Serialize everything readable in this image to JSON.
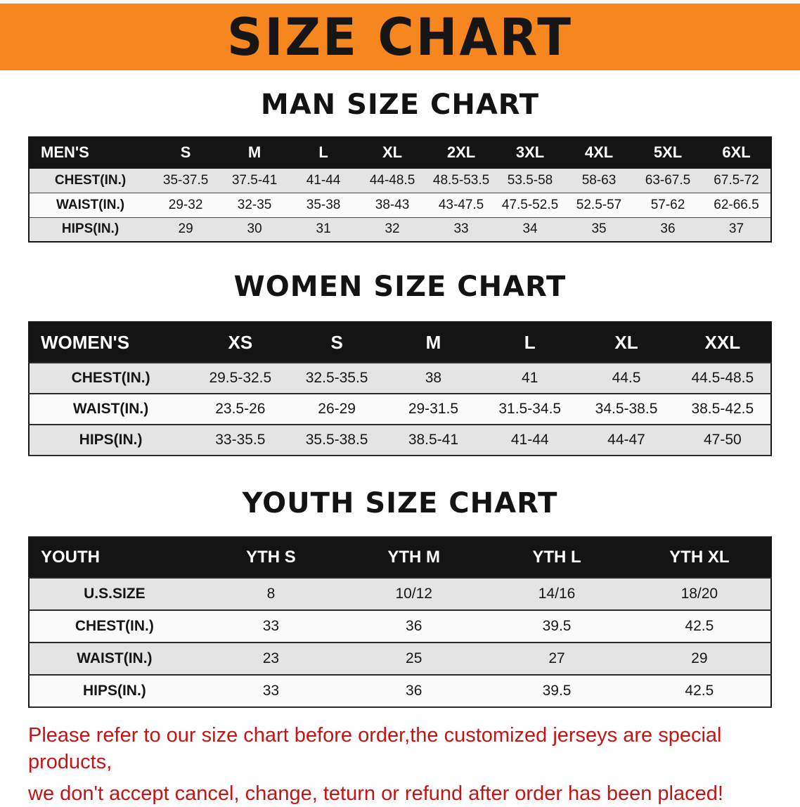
{
  "banner": {
    "title": "SIZE CHART",
    "bg_color": "#f6871e",
    "text_color": "#161616"
  },
  "men": {
    "heading": "MAN SIZE CHART",
    "table": {
      "label": "MEN'S",
      "columns": [
        "S",
        "M",
        "L",
        "XL",
        "2XL",
        "3XL",
        "4XL",
        "5XL",
        "6XL"
      ],
      "rows": [
        {
          "label": "CHEST(IN.)",
          "values": [
            "35-37.5",
            "37.5-41",
            "41-44",
            "44-48.5",
            "48.5-53.5",
            "53.5-58",
            "58-63",
            "63-67.5",
            "67.5-72"
          ]
        },
        {
          "label": "WAIST(IN.)",
          "values": [
            "29-32",
            "32-35",
            "35-38",
            "38-43",
            "43-47.5",
            "47.5-52.5",
            "52.5-57",
            "57-62",
            "62-66.5"
          ]
        },
        {
          "label": "HIPS(IN.)",
          "values": [
            "29",
            "30",
            "31",
            "32",
            "33",
            "34",
            "35",
            "36",
            "37"
          ]
        }
      ]
    }
  },
  "women": {
    "heading": "WOMEN SIZE CHART",
    "table": {
      "label": "WOMEN'S",
      "columns": [
        "XS",
        "S",
        "M",
        "L",
        "XL",
        "XXL"
      ],
      "rows": [
        {
          "label": "CHEST(IN.)",
          "values": [
            "29.5-32.5",
            "32.5-35.5",
            "38",
            "41",
            "44.5",
            "44.5-48.5"
          ]
        },
        {
          "label": "WAIST(IN.)",
          "values": [
            "23.5-26",
            "26-29",
            "29-31.5",
            "31.5-34.5",
            "34.5-38.5",
            "38.5-42.5"
          ]
        },
        {
          "label": "HIPS(IN.)",
          "values": [
            "33-35.5",
            "35.5-38.5",
            "38.5-41",
            "41-44",
            "44-47",
            "47-50"
          ]
        }
      ]
    }
  },
  "youth": {
    "heading": "YOUTH SIZE CHART",
    "table": {
      "label": "YOUTH",
      "columns": [
        "YTH S",
        "YTH M",
        "YTH L",
        "YTH XL"
      ],
      "rows": [
        {
          "label": "U.S.SIZE",
          "values": [
            "8",
            "10/12",
            "14/16",
            "18/20"
          ]
        },
        {
          "label": "CHEST(IN.)",
          "values": [
            "33",
            "36",
            "39.5",
            "42.5"
          ]
        },
        {
          "label": "WAIST(IN.)",
          "values": [
            "23",
            "25",
            "27",
            "29"
          ]
        },
        {
          "label": "HIPS(IN.)",
          "values": [
            "33",
            "36",
            "39.5",
            "42.5"
          ]
        }
      ]
    }
  },
  "footer": {
    "line1": "Please refer to our size chart before order,the customized jerseys are special products,",
    "line2": "we don't accept cancel, change, teturn or refund after order has been placed!",
    "text_color": "#c81313"
  }
}
